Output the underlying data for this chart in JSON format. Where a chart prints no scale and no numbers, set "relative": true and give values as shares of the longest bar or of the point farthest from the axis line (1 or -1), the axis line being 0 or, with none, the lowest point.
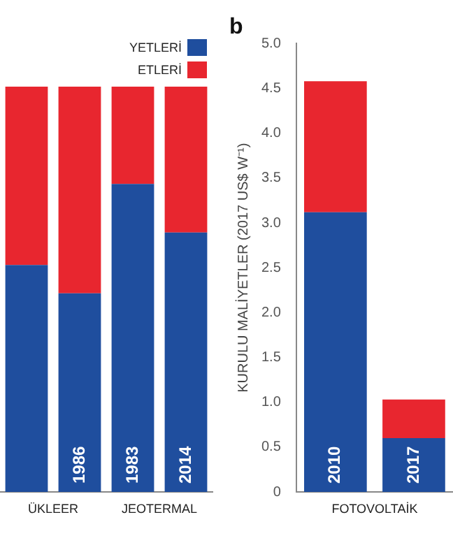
{
  "chart_data": [
    {
      "type": "bar",
      "stacked": true,
      "relative": true,
      "legend": "top right",
      "categories": [
        null,
        "1986",
        "1983",
        "2014"
      ],
      "series": [
        {
          "name": "YETLERİ",
          "color": "#1f4e9e",
          "values": [
            0.56,
            0.49,
            0.76,
            0.64
          ]
        },
        {
          "name": "ETLERİ",
          "color": "#e8262f",
          "values": [
            0.44,
            0.51,
            0.24,
            0.36
          ]
        }
      ],
      "annotations": [
        "ÜKLEER",
        "JEOTERMAL"
      ]
    },
    {
      "type": "bar",
      "stacked": true,
      "title": "b",
      "ylabel": "KURULU MALİYETLER (2017 US$ W⁻¹)",
      "categories": [
        "2010",
        "2017"
      ],
      "series": [
        {
          "color": "#1f4e9e",
          "values": [
            3.12,
            0.6
          ]
        },
        {
          "color": "#e8262f",
          "values": [
            1.46,
            0.43
          ]
        }
      ],
      "ylim": [
        0,
        5
      ],
      "yticks": [
        0,
        0.5,
        {
          "value": 1,
          "label": "1.0"
        },
        1.5,
        {
          "value": 2,
          "label": "2.0"
        },
        2.5,
        {
          "value": 3,
          "label": "3.0"
        },
        3.5,
        {
          "value": 4,
          "label": "4.0"
        },
        4.5,
        {
          "value": 5,
          "label": "5.0"
        }
      ],
      "annotations": [
        "FOTOVOLTAİK"
      ]
    }
  ]
}
